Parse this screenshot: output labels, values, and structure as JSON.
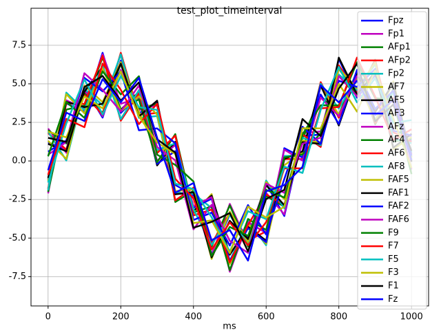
{
  "chart_data": {
    "type": "line",
    "title": "test_plot_timeinterval",
    "x_label": "ms",
    "x": [
      0,
      50,
      100,
      150,
      200,
      250,
      300,
      350,
      400,
      450,
      500,
      550,
      600,
      650,
      700,
      750,
      800,
      850,
      900,
      950,
      1000
    ],
    "xlim": [
      -47,
      1047
    ],
    "ylim": [
      -9.4,
      9.9
    ],
    "xticks": [
      0,
      200,
      400,
      600,
      800,
      1000
    ],
    "yticks": [
      -7.5,
      {
        "value": -5,
        "label": "-5.0"
      },
      -2.5,
      {
        "value": 0,
        "label": "0.0"
      },
      2.5,
      {
        "value": 5,
        "label": "5.0"
      },
      7.5
    ],
    "grid": true,
    "legend": "upper right",
    "series": [
      {
        "name": "Fpz",
        "color": "#0000ff",
        "values": [
          1.2,
          0.73,
          4.79,
          2.81,
          6.51,
          3.09,
          3.81,
          -1.56,
          -2.23,
          -6.05,
          -3.48,
          -4.96,
          -1.47,
          -3.57,
          1.62,
          1.71,
          6.6,
          4.1,
          5.57,
          1.36,
          1.35
        ]
      },
      {
        "name": "Fp1",
        "color": "#bf00bf",
        "values": [
          2.1,
          0.53,
          4.59,
          2.91,
          5.91,
          3.29,
          3.61,
          -1.96,
          -2.33,
          -6.15,
          -2.78,
          -5.36,
          -2.07,
          -3.47,
          1.82,
          1.91,
          6.1,
          4.5,
          3.27,
          4.46,
          0.05
        ]
      },
      {
        "name": "AFp1",
        "color": "#008000",
        "values": [
          2.0,
          1.13,
          4.39,
          3.11,
          6.31,
          3.39,
          3.71,
          -2.66,
          -1.93,
          -5.55,
          -2.88,
          -5.56,
          -2.27,
          -2.97,
          1.42,
          4.21,
          3.0,
          5.8,
          2.37,
          4.66,
          0.25
        ]
      },
      {
        "name": "AFp2",
        "color": "#ff0000",
        "values": [
          1.8,
          0.73,
          4.29,
          3.01,
          7.01,
          2.99,
          3.11,
          -2.56,
          -1.73,
          -5.35,
          -3.38,
          -5.16,
          -4.57,
          0.13,
          0.12,
          5.11,
          2.8,
          5.6,
          2.47,
          4.06,
          0.45
        ]
      },
      {
        "name": "Fp2",
        "color": "#00bfbf",
        "values": [
          1.9,
          0.03,
          4.69,
          3.61,
          6.91,
          2.79,
          2.91,
          -2.06,
          -2.13,
          -3.05,
          -6.48,
          -3.86,
          -5.47,
          0.33,
          0.32,
          5.01,
          3.4,
          5.4,
          2.67,
          4.46,
          0.55
        ]
      },
      {
        "name": "AF7",
        "color": "#bfbf00",
        "values": [
          1.3,
          0.13,
          4.89,
          3.81,
          6.41,
          3.19,
          0.61,
          1.04,
          -3.43,
          -2.15,
          -6.68,
          -4.06,
          -5.37,
          -0.27,
          0.52,
          4.81,
          3.0,
          5.3,
          2.57,
          5.16,
          0.15
        ]
      },
      {
        "name": "AF5",
        "color": "#000000",
        "values": [
          1.1,
          0.63,
          4.49,
          6.11,
          3.31,
          4.49,
          -0.29,
          1.24,
          -3.23,
          -2.25,
          -6.08,
          -4.26,
          -5.17,
          0.13,
          0.62,
          4.91,
          2.3,
          5.7,
          3.17,
          5.06,
          -0.05
        ]
      },
      {
        "name": "AF3",
        "color": "#0000ff",
        "values": [
          -1.2,
          3.73,
          3.19,
          7.01,
          3.11,
          4.29,
          -0.19,
          0.64,
          -3.03,
          -2.45,
          -6.48,
          -4.36,
          -5.27,
          0.83,
          0.22,
          4.31,
          2.4,
          5.9,
          3.37,
          4.56,
          0.35
        ]
      },
      {
        "name": "AFz",
        "color": "#bf00bf",
        "values": [
          -2.1,
          3.93,
          3.39,
          6.91,
          3.71,
          4.09,
          0.01,
          1.04,
          -2.93,
          -2.35,
          -7.18,
          -3.96,
          -4.67,
          0.73,
          0.02,
          4.11,
          2.9,
          5.5,
          5.67,
          1.46,
          1.65
        ]
      },
      {
        "name": "AF4",
        "color": "#008000",
        "values": [
          -2.0,
          3.33,
          3.59,
          6.71,
          3.31,
          3.99,
          -0.09,
          1.74,
          -3.33,
          -2.95,
          -7.08,
          -3.76,
          -4.47,
          0.23,
          0.42,
          1.81,
          6.0,
          4.2,
          6.57,
          1.26,
          1.45
        ]
      },
      {
        "name": "AF6",
        "color": "#ff0000",
        "values": [
          -1.8,
          3.73,
          3.69,
          6.81,
          2.61,
          4.39,
          0.51,
          1.64,
          -3.53,
          -3.15,
          -6.58,
          -4.16,
          -2.17,
          -2.87,
          1.72,
          0.91,
          6.2,
          4.4,
          6.47,
          1.86,
          1.25
        ]
      },
      {
        "name": "AF8",
        "color": "#00bfbf",
        "values": [
          -1.9,
          4.43,
          3.29,
          6.21,
          2.71,
          4.59,
          0.71,
          1.14,
          -3.13,
          -5.45,
          -3.48,
          -5.46,
          -1.27,
          -3.07,
          1.52,
          1.01,
          5.6,
          4.6,
          6.27,
          1.46,
          1.15
        ]
      },
      {
        "name": "FAF5",
        "color": "#bfbf00",
        "values": [
          -1.3,
          4.33,
          3.09,
          6.01,
          3.21,
          4.19,
          3.01,
          -1.96,
          -1.83,
          -6.35,
          -3.28,
          -5.26,
          -1.37,
          -2.47,
          1.32,
          1.21,
          6.0,
          4.7,
          6.37,
          0.76,
          1.55
        ]
      },
      {
        "name": "FAF1",
        "color": "#000000",
        "values": [
          -1.1,
          3.83,
          3.49,
          3.71,
          6.31,
          2.89,
          3.91,
          -2.16,
          -2.03,
          -6.25,
          -3.88,
          -5.06,
          -1.57,
          -2.87,
          1.22,
          1.11,
          6.7,
          4.3,
          5.77,
          0.86,
          1.75
        ]
      },
      {
        "name": "FAF2",
        "color": "#0000ff",
        "values": [
          0.6,
          1.33,
          5.39,
          4.51,
          5.81,
          1.99,
          2.11,
          1.14,
          -3.83,
          -3.35,
          -5.48,
          -2.86,
          -4.77,
          -1.17,
          2.22,
          1.11,
          5.2,
          4.8,
          5.97,
          1.96,
          1.65
        ]
      },
      {
        "name": "FAF6",
        "color": "#bf00bf",
        "values": [
          0.4,
          1.23,
          5.69,
          4.61,
          3.21,
          4.89,
          0.91,
          0.04,
          -4.43,
          -2.85,
          -5.18,
          -5.96,
          -1.47,
          -2.07,
          1.12,
          1.51,
          5.5,
          4.2,
          3.87,
          3.86,
          -0.55
        ]
      },
      {
        "name": "F9",
        "color": "#008000",
        "values": [
          0.3,
          3.83,
          2.79,
          5.81,
          4.31,
          5.49,
          0.41,
          -0.26,
          -1.33,
          -6.15,
          -4.28,
          -4.86,
          -1.87,
          -2.37,
          1.72,
          3.61,
          3.6,
          6.4,
          4.07,
          3.96,
          -0.85
        ]
      },
      {
        "name": "F7",
        "color": "#ff0000",
        "values": [
          -0.9,
          2.73,
          2.19,
          6.31,
          4.61,
          2.39,
          3.71,
          -1.16,
          -2.43,
          -5.75,
          -3.98,
          -5.46,
          -3.97,
          -0.47,
          -0.48,
          3.41,
          3.5,
          6.7,
          4.17,
          1.36,
          2.05
        ]
      },
      {
        "name": "F5",
        "color": "#00bfbf",
        "values": [
          -1.4,
          2.43,
          5.29,
          3.01,
          5.51,
          3.49,
          3.31,
          -1.46,
          -1.83,
          -3.65,
          -5.88,
          -3.26,
          -3.77,
          -0.37,
          -0.78,
          3.31,
          6.1,
          3.8,
          5.37,
          2.46,
          2.65
        ]
      },
      {
        "name": "F3",
        "color": "#bfbf00",
        "values": [
          1.9,
          1.53,
          4.19,
          3.41,
          5.81,
          2.89,
          1.21,
          0.44,
          -4.03,
          -3.85,
          -5.98,
          -2.96,
          -3.67,
          -2.97,
          2.12,
          2.11,
          5.0,
          3.2,
          5.87,
          2.76,
          -0.45
        ]
      },
      {
        "name": "F1",
        "color": "#000000",
        "values": [
          1.5,
          1.23,
          4.79,
          5.51,
          3.91,
          5.09,
          1.41,
          0.54,
          -4.33,
          -3.95,
          -3.38,
          -5.86,
          -2.47,
          -1.87,
          2.72,
          1.61,
          4.7,
          6.3,
          2.57,
          3.66,
          0.65
        ]
      },
      {
        "name": "Fz",
        "color": "#0000ff",
        "values": [
          -0.6,
          3.13,
          2.59,
          5.31,
          3.81,
          5.39,
          1.51,
          -2.06,
          -1.43,
          -5.15,
          -4.48,
          -6.46,
          -1.97,
          -1.57,
          -0.38,
          4.91,
          3.8,
          5.2,
          2.97,
          3.96,
          0.05
        ]
      }
    ]
  }
}
